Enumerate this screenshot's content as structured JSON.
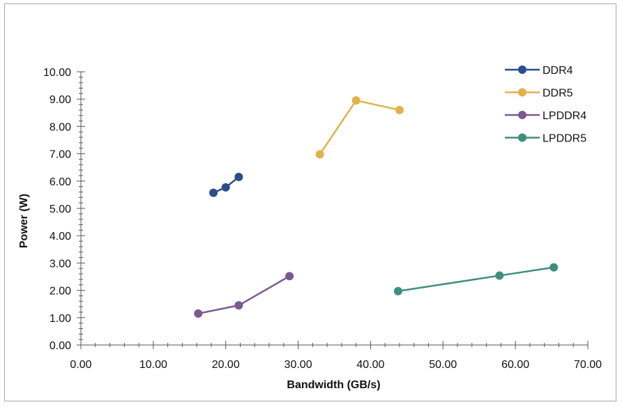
{
  "chart_data": {
    "type": "line",
    "title": "",
    "xlabel": "Bandwidth (GB/s)",
    "ylabel": "Power (W)",
    "xlim": [
      0,
      70
    ],
    "ylim": [
      0,
      10
    ],
    "x_ticks": [
      "0.00",
      "10.00",
      "20.00",
      "30.00",
      "40.00",
      "50.00",
      "60.00",
      "70.00"
    ],
    "y_ticks": [
      "0.00",
      "1.00",
      "2.00",
      "3.00",
      "4.00",
      "5.00",
      "6.00",
      "7.00",
      "8.00",
      "9.00",
      "10.00"
    ],
    "grid": false,
    "legend_position": "top-right",
    "series": [
      {
        "name": "DDR4",
        "color": "#2c4c8a",
        "x": [
          18.3,
          20.0,
          21.8
        ],
        "y": [
          5.57,
          5.77,
          6.15
        ]
      },
      {
        "name": "DDR5",
        "color": "#e2b24a",
        "x": [
          33.0,
          38.0,
          44.0
        ],
        "y": [
          6.98,
          8.95,
          8.6
        ]
      },
      {
        "name": "LPDDR4",
        "color": "#7a5a91",
        "x": [
          16.2,
          21.8,
          28.8
        ],
        "y": [
          1.15,
          1.45,
          2.52
        ]
      },
      {
        "name": "LPDDR5",
        "color": "#3f8d7d",
        "x": [
          43.8,
          57.8,
          65.3
        ],
        "y": [
          1.97,
          2.54,
          2.84
        ]
      }
    ]
  }
}
